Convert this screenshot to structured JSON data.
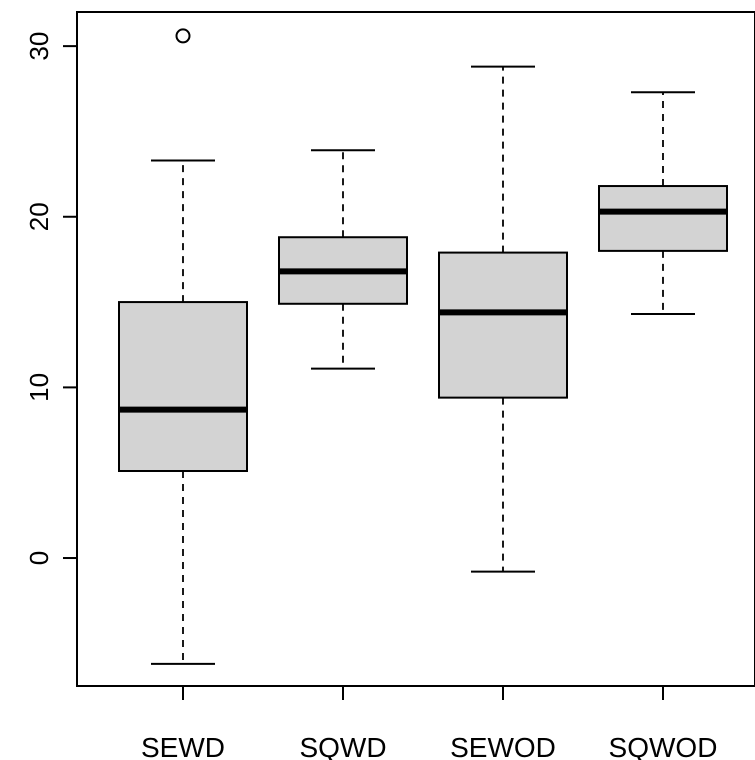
{
  "chart_data": {
    "type": "boxplot",
    "title": "",
    "xlabel": "",
    "ylabel": "",
    "ylim": [
      -7.5,
      32
    ],
    "yticks": [
      0,
      10,
      20,
      30
    ],
    "ytick_labels": [
      "0",
      "10",
      "20",
      "30"
    ],
    "box_fill": "#d3d3d3",
    "grid": false,
    "categories": [
      "SEWD",
      "SQWD",
      "SEWOD",
      "SQWOD"
    ],
    "boxes": [
      {
        "whisker_low": -6.2,
        "q1": 5.1,
        "median": 8.7,
        "q3": 15.0,
        "whisker_high": 23.3,
        "outliers": [
          30.6
        ]
      },
      {
        "whisker_low": 11.1,
        "q1": 14.9,
        "median": 16.8,
        "q3": 18.8,
        "whisker_high": 23.9,
        "outliers": []
      },
      {
        "whisker_low": -0.8,
        "q1": 9.4,
        "median": 14.4,
        "q3": 17.9,
        "whisker_high": 28.8,
        "outliers": []
      },
      {
        "whisker_low": 14.3,
        "q1": 18.0,
        "median": 20.3,
        "q3": 21.8,
        "whisker_high": 27.3,
        "outliers": []
      }
    ]
  }
}
